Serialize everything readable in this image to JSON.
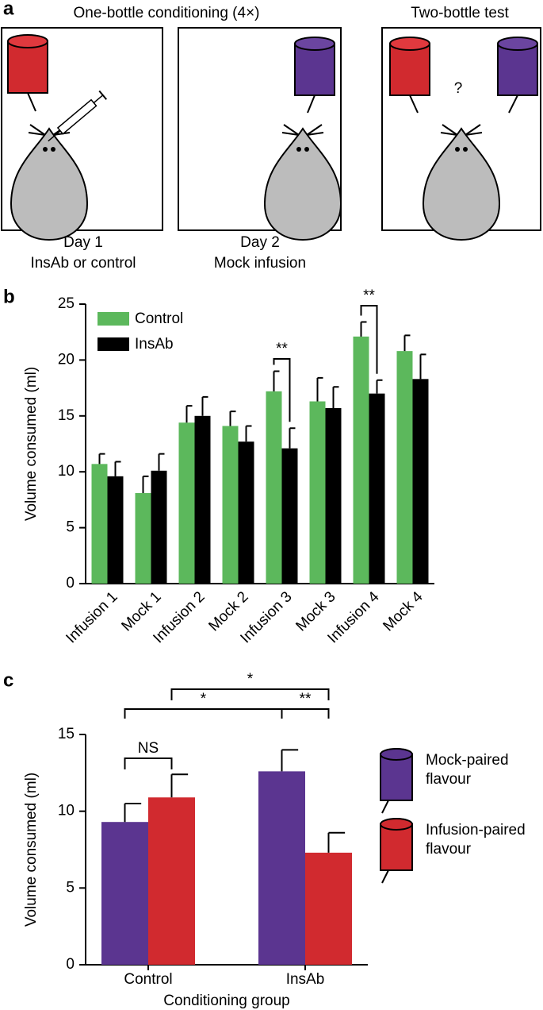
{
  "panel_a": {
    "label": "a",
    "title_left": "One-bottle conditioning (4×)",
    "title_right": "Two-bottle test",
    "day1_line1": "Day 1",
    "day1_line2": "InsAb or control",
    "day2_line1": "Day 2",
    "day2_line2": "Mock infusion",
    "question": "?"
  },
  "chart_data": [
    {
      "type": "bar",
      "label": "b",
      "ylabel": "Volume consumed (ml)",
      "categories": [
        "Infusion 1",
        "Mock 1",
        "Infusion 2",
        "Mock 2",
        "Infusion 3",
        "Mock 3",
        "Infusion 4",
        "Mock 4"
      ],
      "series": [
        {
          "name": "Control",
          "color": "#5cb85c",
          "values": [
            10.7,
            8.1,
            14.4,
            14.1,
            17.2,
            16.3,
            22.1,
            20.8
          ],
          "errors": [
            0.9,
            1.5,
            1.5,
            1.3,
            1.8,
            2.1,
            1.3,
            1.4
          ]
        },
        {
          "name": "InsAb",
          "color": "#000000",
          "values": [
            9.6,
            10.1,
            15.0,
            12.7,
            12.1,
            15.7,
            17.0,
            18.3
          ],
          "errors": [
            1.3,
            1.5,
            1.7,
            1.4,
            1.8,
            1.9,
            1.2,
            2.2
          ]
        }
      ],
      "ylim": [
        0,
        25
      ],
      "yticks": [
        0,
        5,
        10,
        15,
        20,
        25
      ],
      "annotations": [
        "**",
        "**"
      ]
    },
    {
      "type": "bar",
      "label": "c",
      "ylabel": "Volume consumed (ml)",
      "xlabel": "Conditioning group",
      "categories": [
        "Control",
        "InsAb"
      ],
      "series": [
        {
          "name": "Mock-paired flavour",
          "color": "#5b3590",
          "values": [
            9.3,
            12.6
          ],
          "errors": [
            1.2,
            1.4
          ]
        },
        {
          "name": "Infusion-paired flavour",
          "color": "#d12a2f",
          "values": [
            10.9,
            7.3
          ],
          "errors": [
            1.5,
            1.3
          ]
        }
      ],
      "ylim": [
        0,
        15
      ],
      "yticks": [
        0,
        5,
        10,
        15
      ],
      "annotations": [
        "NS",
        "*",
        "**",
        "*"
      ]
    }
  ]
}
